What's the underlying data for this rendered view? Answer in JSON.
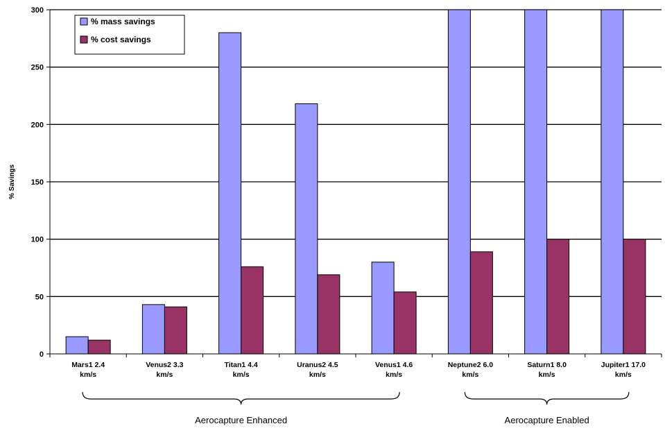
{
  "chart_data": {
    "type": "bar",
    "title": "",
    "xlabel": "",
    "ylabel": "% Savings",
    "ylim": [
      0,
      300
    ],
    "yticks": [
      0,
      50,
      100,
      150,
      200,
      250,
      300
    ],
    "grid": true,
    "legend_position": "top-left",
    "categories": [
      [
        "Mars1   2.4",
        "km/s"
      ],
      [
        "Venus2 3.3",
        "km/s"
      ],
      [
        "Titan1  4.4",
        "km/s"
      ],
      [
        "Uranus2 4.5",
        "km/s"
      ],
      [
        "Venus1 4.6",
        "km/s"
      ],
      [
        "Neptune2 6.0",
        "km/s"
      ],
      [
        "Saturn1 8.0",
        "km/s"
      ],
      [
        "Jupiter1 17.0",
        "km/s"
      ]
    ],
    "series": [
      {
        "name": "% mass savings",
        "color": "#9999ff",
        "values": [
          15,
          43,
          280,
          218,
          80,
          300,
          300,
          300
        ]
      },
      {
        "name": "% cost savings",
        "color": "#993366",
        "values": [
          12,
          41,
          76,
          69,
          54,
          89,
          100,
          100
        ]
      }
    ],
    "groups": [
      {
        "label": "Aerocapture Enhanced",
        "from": 0,
        "to": 4
      },
      {
        "label": "Aerocapture Enabled",
        "from": 5,
        "to": 7
      }
    ]
  }
}
